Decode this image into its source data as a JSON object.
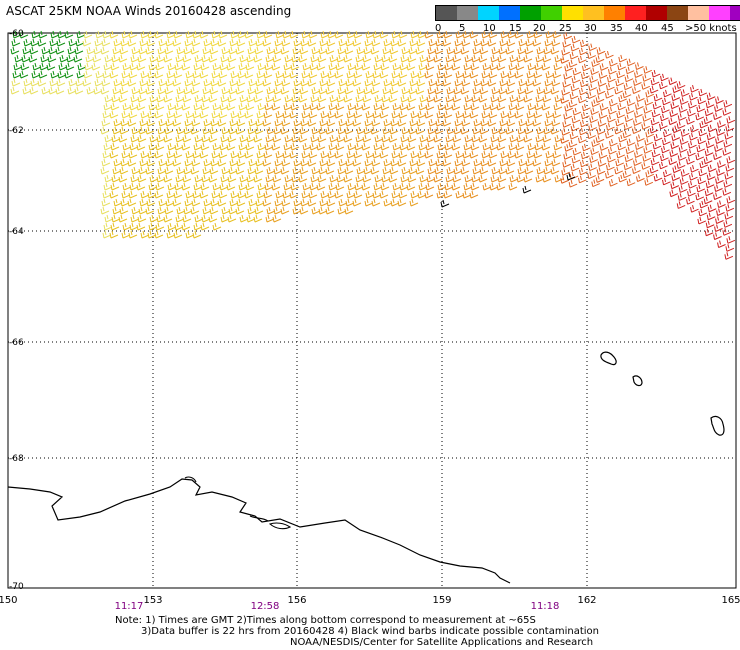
{
  "title": "ASCAT 25KM NOAA Winds 20160428 ascending",
  "scale": {
    "colors": [
      "#555555",
      "#888888",
      "#00d4ff",
      "#0070ff",
      "#00a000",
      "#40d000",
      "#ffe000",
      "#ffc020",
      "#ff8000",
      "#ff2020",
      "#b00000",
      "#8b4513",
      "#ffc0a0",
      "#ff40ff",
      "#a000c0",
      "#400080"
    ],
    "labels": [
      "0",
      "5",
      "10",
      "15",
      "20",
      "25",
      "30",
      "35",
      "40",
      "45",
      ">50 knots"
    ]
  },
  "map": {
    "lat_labels": [
      "-60",
      "-62",
      "-64",
      "-66",
      "-68",
      "-70"
    ],
    "lon_labels": [
      "150",
      "153",
      "156",
      "159",
      "162",
      "165"
    ],
    "time_labels": [
      "11:17",
      "12:58",
      "11:18"
    ],
    "time_color": "#800080"
  },
  "notes": {
    "line1": "Note: 1) Times are GMT 2)Times along bottom correspond to measurement at ~65S",
    "line2": "3)Data buffer is 22 hrs from 20160428 4) Black wind barbs indicate possible contamination",
    "line3": "NOAA/NESDIS/Center for Satellite Applications and Research"
  }
}
